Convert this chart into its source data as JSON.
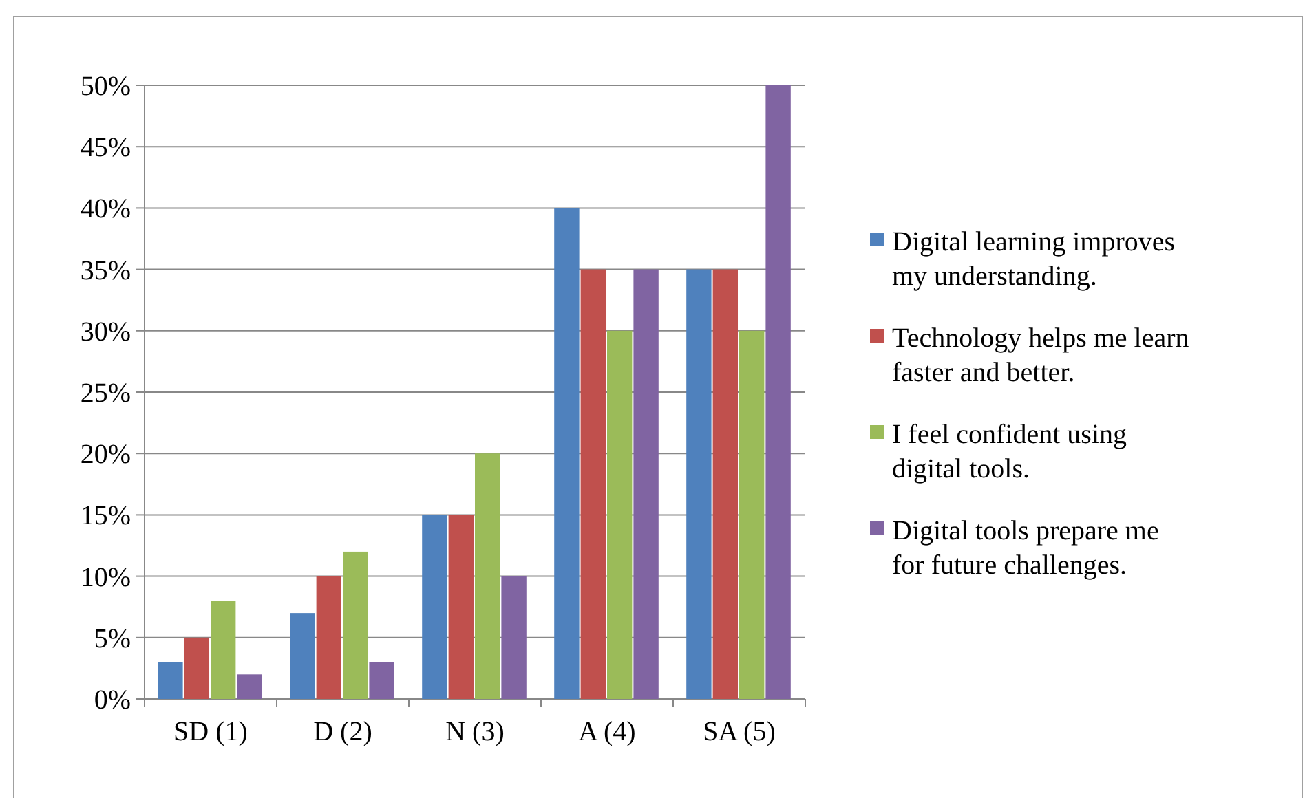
{
  "chart_data": {
    "type": "bar",
    "categories": [
      "SD (1)",
      "D (2)",
      "N (3)",
      "A (4)",
      "SA (5)"
    ],
    "series": [
      {
        "name": "Digital learning improves my understanding.",
        "color": "#4f81bd",
        "values": [
          3,
          7,
          15,
          40,
          35
        ]
      },
      {
        "name": "Technology helps me learn faster and better.",
        "color": "#c0504d",
        "values": [
          5,
          10,
          15,
          35,
          35
        ]
      },
      {
        "name": "I feel confident using digital tools.",
        "color": "#9bbb59",
        "values": [
          8,
          12,
          20,
          30,
          30
        ]
      },
      {
        "name": "Digital tools prepare me for future challenges.",
        "color": "#8064a2",
        "values": [
          2,
          3,
          10,
          35,
          50
        ]
      }
    ],
    "ylim": [
      0,
      50
    ],
    "yticks": [
      {
        "value": 0,
        "label": "0%"
      },
      {
        "value": 5,
        "label": "5%"
      },
      {
        "value": 10,
        "label": "10%"
      },
      {
        "value": 15,
        "label": "15%"
      },
      {
        "value": 20,
        "label": "20%"
      },
      {
        "value": 25,
        "label": "25%"
      },
      {
        "value": 30,
        "label": "30%"
      },
      {
        "value": 35,
        "label": "35%"
      },
      {
        "value": 40,
        "label": "40%"
      },
      {
        "value": 45,
        "label": "45%"
      },
      {
        "value": 50,
        "label": "50%"
      }
    ],
    "grid": "y",
    "legend": "right"
  }
}
